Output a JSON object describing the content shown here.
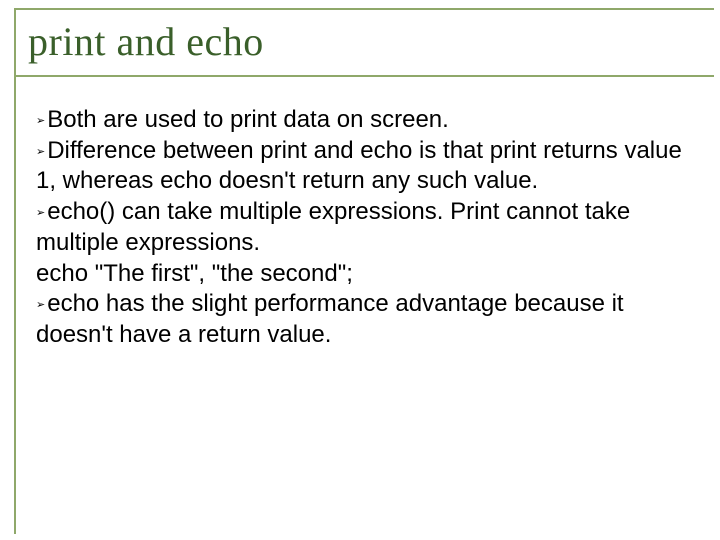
{
  "title": "print and echo",
  "bullet_glyph": "➢",
  "colors": {
    "title_color": "#3a5f2a",
    "border_color": "#8fa86a",
    "text_color": "#000000",
    "background": "#ffffff"
  },
  "typography": {
    "title_fontsize": 40,
    "body_fontsize": 24,
    "title_family": "Times New Roman",
    "body_family": "Arial"
  },
  "body": {
    "p1": "Both are used to print data on screen.",
    "p2": "Difference between print and echo is that print returns value 1, whereas echo doesn't return any such value.",
    "p3": "echo() can take multiple expressions. Print cannot take multiple expressions.",
    "code": "echo \"The first\", \"the second\";",
    "p4": "echo has the slight performance advantage because it doesn't have a return value."
  }
}
